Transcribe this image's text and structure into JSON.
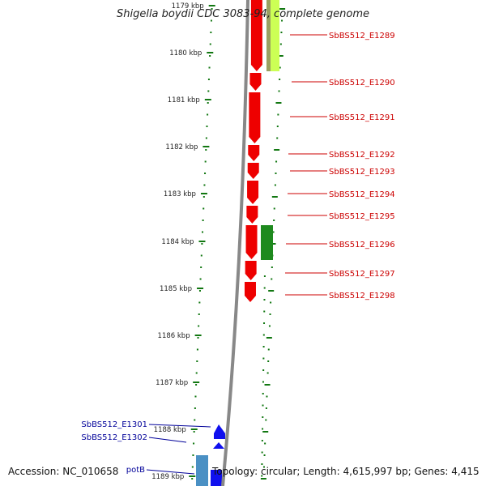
{
  "title": "Shigella boydii CDC 3083-94, complete genome",
  "footer": {
    "accession": "Accession: NC_010658",
    "topology": "Topology: circular; Length: 4,615,997 bp; Genes: 4,415"
  },
  "ticks": [
    "1179 kbp",
    "1180 kbp",
    "1181 kbp",
    "1182 kbp",
    "1183 kbp",
    "1184 kbp",
    "1185 kbp",
    "1186 kbp",
    "1187 kbp",
    "1188 kbp",
    "1189 kbp"
  ],
  "right_genes": [
    "SbBS512_E1289",
    "SbBS512_E1290",
    "SbBS512_E1291",
    "SbBS512_E1292",
    "SbBS512_E1293",
    "SbBS512_E1294",
    "SbBS512_E1295",
    "SbBS512_E1296",
    "SbBS512_E1297",
    "SbBS512_E1298"
  ],
  "left_genes": [
    "SbBS512_E1301",
    "SbBS512_E1302",
    "potB"
  ],
  "colors": {
    "gene_red": "#ee0000",
    "gene_green": "#1e8a1e",
    "gene_lime": "#ccff55",
    "gene_blue": "#1010ee",
    "gene_steel": "#4a90c4",
    "label_red": "#cc0000",
    "label_blue": "#000099",
    "tick_green": "#117711",
    "backbone": "#888888"
  }
}
